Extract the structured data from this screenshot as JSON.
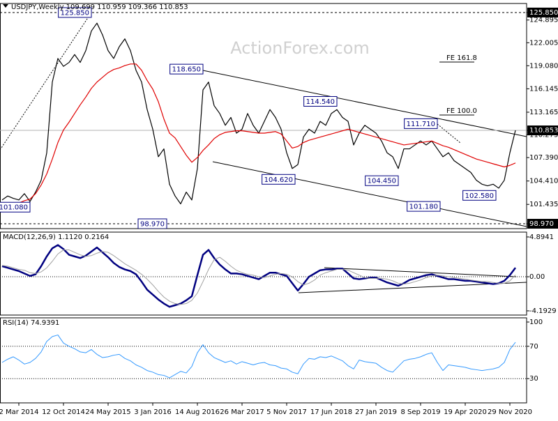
{
  "chart_data": [
    {
      "type": "line",
      "title": "USDJPY,Weekly  109.699 110.959 109.366 110.853",
      "watermark": "ActionForex.com",
      "categories": [
        null,
        null,
        null,
        "2 Mar 2014",
        null,
        null,
        null,
        null,
        null,
        null,
        null,
        "12 Oct 2014",
        null,
        null,
        null,
        null,
        null,
        null,
        null,
        "24 May 2015",
        null,
        null,
        null,
        null,
        null,
        null,
        null,
        "3 Jan 2016",
        null,
        null,
        null,
        null,
        null,
        null,
        null,
        "14 Aug 2016",
        null,
        null,
        null,
        null,
        null,
        null,
        null,
        "26 Mar 2017",
        null,
        null,
        null,
        null,
        null,
        null,
        null,
        "5 Nov 2017",
        null,
        null,
        null,
        null,
        null,
        null,
        null,
        "17 Jun 2018",
        null,
        null,
        null,
        null,
        null,
        null,
        null,
        "27 Jan 2019",
        null,
        null,
        null,
        null,
        null,
        null,
        null,
        "8 Sep 2019",
        null,
        null,
        null,
        null,
        null,
        null,
        null,
        "19 Apr 2020",
        null,
        null,
        null,
        null,
        null,
        null,
        null,
        "29 Nov 2020",
        null
      ],
      "ylim": [
        98.35,
        127.0
      ],
      "yticks": [
        {
          "value": 125.85,
          "label": "125.850",
          "highlight": true,
          "style": "dashed"
        },
        124.895,
        122.005,
        {
          "value": 119.08,
          "label": "119.080"
        },
        116.145,
        113.165,
        {
          "value": 110.853,
          "label": "110.853",
          "highlight": true,
          "style": "solid"
        },
        110.275,
        {
          "value": 107.39,
          "label": "107.390"
        },
        {
          "value": 104.41,
          "label": "104.410"
        },
        101.435,
        {
          "value": 98.97,
          "label": "98.970",
          "highlight": true,
          "style": "dashed"
        }
      ],
      "series": [
        {
          "color": "#000000",
          "width": 1.2,
          "values": [
            102.0,
            102.5,
            102.2,
            102.0,
            102.8,
            101.8,
            103.0,
            104.5,
            108.0,
            117.0,
            120.0,
            119.0,
            119.5,
            120.5,
            119.5,
            121.0,
            123.5,
            124.5,
            123.0,
            121.0,
            120.0,
            121.5,
            122.5,
            121.0,
            118.5,
            117.0,
            113.5,
            111.0,
            107.5,
            108.5,
            104.0,
            102.5,
            101.5,
            103.0,
            102.0,
            106.0,
            116.0,
            117.0,
            114.0,
            113.0,
            111.5,
            112.5,
            110.5,
            111.0,
            113.0,
            111.5,
            110.5,
            112.0,
            113.5,
            112.5,
            111.0,
            108.0,
            106.0,
            106.5,
            110.0,
            111.0,
            110.5,
            112.0,
            111.5,
            113.0,
            113.5,
            112.5,
            112.0,
            109.0,
            110.5,
            111.5,
            111.0,
            110.5,
            109.5,
            108.0,
            107.5,
            106.0,
            108.5,
            108.5,
            109.0,
            109.5,
            109.0,
            109.5,
            108.5,
            107.5,
            108.0,
            107.0,
            106.5,
            106.0,
            105.5,
            104.5,
            104.0,
            103.8,
            104.0,
            103.5,
            104.5,
            108.0,
            110.853
          ]
        },
        {
          "color": "#e00000",
          "width": 1.2,
          "values": [
            101.0,
            101.2,
            101.4,
            101.6,
            101.9,
            102.1,
            102.8,
            103.9,
            105.3,
            107.2,
            109.3,
            110.9,
            111.9,
            113.0,
            114.1,
            115.1,
            116.2,
            117.0,
            117.6,
            118.2,
            118.6,
            118.8,
            119.1,
            119.3,
            119.3,
            118.5,
            117.2,
            116.1,
            114.5,
            112.3,
            110.5,
            109.9,
            108.8,
            107.7,
            106.8,
            107.4,
            108.3,
            109.0,
            109.8,
            110.3,
            110.6,
            110.7,
            110.8,
            110.8,
            110.7,
            110.6,
            110.5,
            110.5,
            110.6,
            110.7,
            110.4,
            109.5,
            108.6,
            108.8,
            109.3,
            109.6,
            109.8,
            110.0,
            110.2,
            110.4,
            110.6,
            110.8,
            111.0,
            110.8,
            110.6,
            110.4,
            110.2,
            110.0,
            109.8,
            109.6,
            109.4,
            109.2,
            109.0,
            109.1,
            109.2,
            109.3,
            109.4,
            109.5,
            109.2,
            108.9,
            108.7,
            108.4,
            108.1,
            107.8,
            107.5,
            107.2,
            107.0,
            106.8,
            106.6,
            106.4,
            106.2,
            106.4,
            106.7
          ]
        }
      ],
      "annotations": [
        {
          "text": "125.850",
          "x": 16,
          "y": 125.85
        },
        {
          "text": "118.650",
          "x": 36,
          "y": 118.65
        },
        {
          "text": "114.540",
          "x": 60,
          "y": 114.54
        },
        {
          "text": "111.710",
          "x": 78,
          "y": 111.71
        },
        {
          "text": "104.620",
          "x": 52.5,
          "y": 104.62
        },
        {
          "text": "104.450",
          "x": 71,
          "y": 104.45
        },
        {
          "text": "101.180",
          "x": 78.5,
          "y": 101.18
        },
        {
          "text": "102.580",
          "x": 88.5,
          "y": 102.58
        },
        {
          "text": "98.970",
          "x": 29.5,
          "y": 98.97
        },
        {
          "text": "101.080",
          "x": 5,
          "y": 101.08
        }
      ],
      "levels": [
        {
          "text": "FE 161.8",
          "y": 119.55
        },
        {
          "text": "FE 100.0",
          "y": 112.81
        }
      ]
    },
    {
      "type": "line",
      "title": "MACD(12,26,9) 1.1120 0.2164",
      "ylim": [
        -4.71,
        5.49
      ],
      "yticks": [
        4.8941,
        {
          "value": 0,
          "label": "0.00",
          "style": "dotted"
        },
        -4.1929
      ],
      "series": [
        {
          "color": "#000080",
          "width": 2.5,
          "values": [
            1.3,
            1.1,
            0.9,
            0.7,
            0.4,
            0.1,
            0.3,
            1.3,
            2.5,
            3.5,
            3.9,
            3.4,
            2.7,
            2.5,
            2.3,
            2.6,
            3.1,
            3.6,
            3.0,
            2.4,
            1.7,
            1.2,
            0.9,
            0.7,
            0.3,
            -0.6,
            -1.6,
            -2.2,
            -2.8,
            -3.3,
            -3.7,
            -3.5,
            -3.3,
            -2.9,
            -2.4,
            0.2,
            2.7,
            3.3,
            2.3,
            1.5,
            0.9,
            0.4,
            0.4,
            0.3,
            0.1,
            -0.1,
            -0.3,
            0.1,
            0.5,
            0.5,
            0.3,
            0.1,
            -0.8,
            -1.7,
            -0.9,
            0.0,
            0.4,
            0.8,
            0.9,
            0.9,
            1.0,
            1.0,
            0.4,
            -0.2,
            -0.3,
            -0.2,
            -0.1,
            -0.1,
            -0.4,
            -0.7,
            -0.9,
            -1.1,
            -0.8,
            -0.4,
            -0.2,
            0.0,
            0.2,
            0.3,
            0.1,
            -0.1,
            -0.3,
            -0.3,
            -0.4,
            -0.5,
            -0.5,
            -0.6,
            -0.7,
            -0.8,
            -0.9,
            -0.8,
            -0.5,
            0.2,
            1.112
          ]
        },
        {
          "color": "#a0a0a0",
          "width": 1,
          "values": [
            1.4,
            1.3,
            1.1,
            0.9,
            0.8,
            0.5,
            0.4,
            0.6,
            1.1,
            1.9,
            2.8,
            3.3,
            3.3,
            3.0,
            2.7,
            2.5,
            2.6,
            2.9,
            3.1,
            3.0,
            2.6,
            2.1,
            1.6,
            1.2,
            0.8,
            0.3,
            -0.3,
            -1.0,
            -1.8,
            -2.5,
            -3.0,
            -3.3,
            -3.4,
            -3.3,
            -2.9,
            -2.0,
            -0.6,
            0.9,
            2.1,
            2.4,
            1.9,
            1.3,
            0.8,
            0.5,
            0.3,
            0.2,
            0.0,
            -0.1,
            0.1,
            0.3,
            0.4,
            0.3,
            0.0,
            -0.6,
            -1.0,
            -0.8,
            -0.4,
            0.2,
            0.5,
            0.7,
            0.9,
            0.9,
            0.8,
            0.5,
            0.2,
            -0.1,
            -0.2,
            -0.2,
            -0.2,
            -0.3,
            -0.5,
            -0.8,
            -0.9,
            -0.8,
            -0.6,
            -0.4,
            -0.1,
            0.1,
            0.2,
            0.1,
            0.0,
            -0.1,
            -0.2,
            -0.3,
            -0.4,
            -0.5,
            -0.6,
            -0.6,
            -0.7,
            -0.8,
            -0.8,
            -0.5,
            0.2164
          ]
        }
      ]
    },
    {
      "type": "line",
      "title": "RSI(14) 74.9391",
      "ylim": [
        0,
        100
      ],
      "yticks": [
        100,
        {
          "value": 70,
          "label": "70",
          "style": "dotted"
        },
        {
          "value": 30,
          "label": "30",
          "style": "dotted"
        }
      ],
      "series": [
        {
          "color": "#3399ff",
          "width": 1,
          "values": [
            50,
            54,
            57,
            53,
            48,
            50,
            55,
            63,
            76,
            82,
            84,
            74,
            70,
            67,
            63,
            62,
            66,
            60,
            56,
            57,
            59,
            60,
            55,
            52,
            47,
            44,
            40,
            38,
            35,
            34,
            31,
            35,
            39,
            37,
            45,
            62,
            72,
            62,
            56,
            53,
            50,
            52,
            48,
            51,
            49,
            47,
            49,
            50,
            47,
            46,
            43,
            42,
            38,
            36,
            48,
            55,
            54,
            57,
            56,
            58,
            55,
            52,
            46,
            42,
            53,
            51,
            50,
            49,
            44,
            40,
            38,
            45,
            52,
            54,
            55,
            57,
            60,
            62,
            50,
            40,
            47,
            46,
            45,
            44,
            42,
            41,
            40,
            41,
            42,
            44,
            50,
            66,
            74.9391
          ]
        }
      ]
    }
  ]
}
